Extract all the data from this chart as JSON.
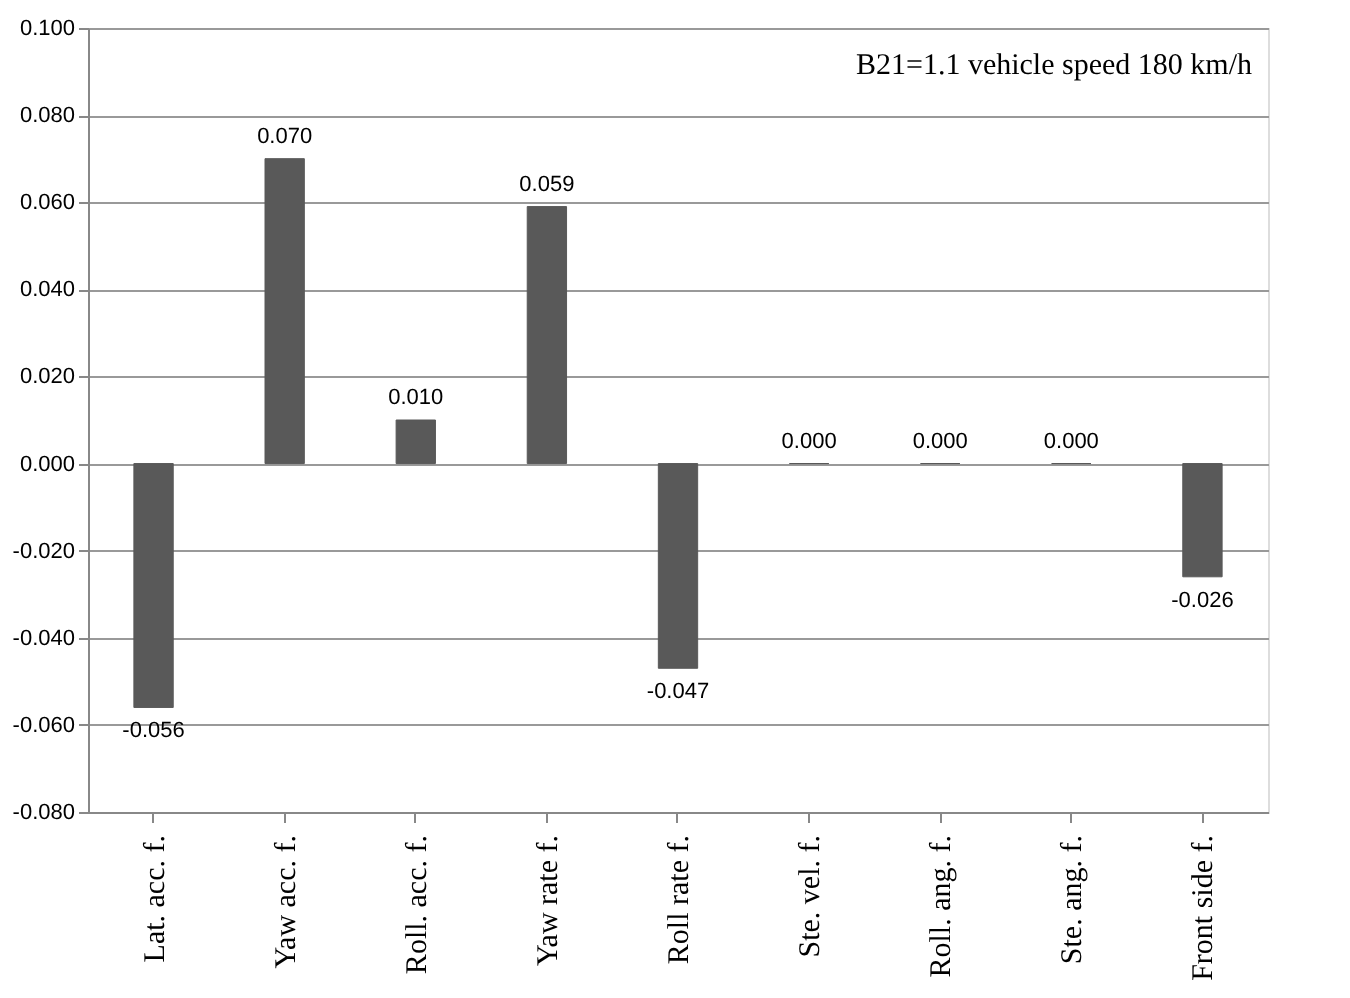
{
  "chart_data": {
    "type": "bar",
    "categories": [
      "Lat. acc. f.",
      "Yaw acc. f.",
      "Roll. acc. f.",
      "Yaw rate f.",
      "Roll rate f.",
      "Ste. vel. f.",
      "Roll. ang. f.",
      "Ste. ang. f.",
      "Front side f."
    ],
    "values": [
      -0.056,
      0.07,
      0.01,
      0.059,
      -0.047,
      0.0,
      0.0,
      0.0,
      -0.026
    ],
    "value_labels": [
      "-0.056",
      "0.070",
      "0.010",
      "0.059",
      "-0.047",
      "0.000",
      "0.000",
      "0.000",
      "-0.026"
    ],
    "color": "#595959",
    "ylim": [
      -0.08,
      0.1
    ],
    "yticks": [
      {
        "value": -0.08,
        "label": "-0.080"
      },
      {
        "value": -0.06,
        "label": "-0.060"
      },
      {
        "value": -0.04,
        "label": "-0.040"
      },
      {
        "value": -0.02,
        "label": "-0.020"
      },
      {
        "value": 0,
        "label": "0.000"
      },
      {
        "value": 0.02,
        "label": "0.020"
      },
      {
        "value": 0.04,
        "label": "0.040"
      },
      {
        "value": 0.06,
        "label": "0.060"
      },
      {
        "value": 0.08,
        "label": "0.080"
      },
      {
        "value": 0.1,
        "label": "0.100"
      }
    ],
    "grid": "y",
    "annotations": [
      "B21=1.1 vehicle speed 180 km/h"
    ]
  }
}
